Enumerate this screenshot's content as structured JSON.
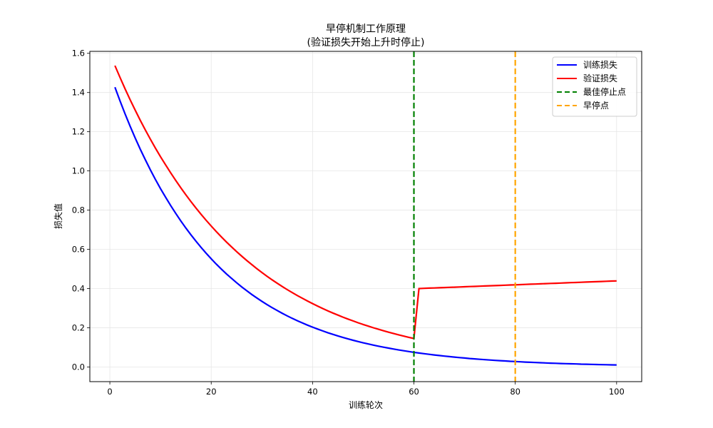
{
  "chart_data": {
    "type": "line",
    "title": "早停机制工作原理",
    "subtitle": "(验证损失开始上升时停止)",
    "xlabel": "训练轮次",
    "ylabel": "损失值",
    "xlim": [
      -3.95,
      104.95
    ],
    "ylim": [
      -0.075,
      1.61
    ],
    "xticks": [
      0,
      20,
      40,
      60,
      80,
      100
    ],
    "yticks": [
      0.0,
      0.2,
      0.4,
      0.6,
      0.8,
      1.0,
      1.2,
      1.4,
      1.6
    ],
    "grid": true,
    "legend_position": "upper right",
    "series": [
      {
        "name": "训练损失",
        "color": "#0000ff",
        "style": "solid",
        "formula": "1.5*exp(-0.05*x)",
        "x_range": [
          1,
          100
        ],
        "sample_points": {
          "x": [
            1,
            10,
            20,
            30,
            40,
            50,
            60,
            70,
            80,
            90,
            100
          ],
          "y": [
            1.43,
            0.91,
            0.55,
            0.33,
            0.2,
            0.12,
            0.07,
            0.05,
            0.03,
            0.02,
            0.01
          ]
        }
      },
      {
        "name": "验证损失",
        "color": "#ff0000",
        "style": "solid",
        "formula": "x<=60: 1.6*exp(-0.04*x); x>60: 0.40+0.001*(x-61)",
        "x_range": [
          1,
          100
        ],
        "sample_points": {
          "x": [
            1,
            10,
            20,
            30,
            40,
            50,
            60,
            61,
            70,
            80,
            90,
            100
          ],
          "y": [
            1.54,
            1.07,
            0.72,
            0.48,
            0.32,
            0.22,
            0.14,
            0.4,
            0.41,
            0.42,
            0.43,
            0.44
          ]
        }
      }
    ],
    "vlines": [
      {
        "name": "最佳停止点",
        "x": 60,
        "color": "#008000",
        "style": "dashed"
      },
      {
        "name": "早停点",
        "x": 80,
        "color": "#ffa500",
        "style": "dashed"
      }
    ]
  }
}
